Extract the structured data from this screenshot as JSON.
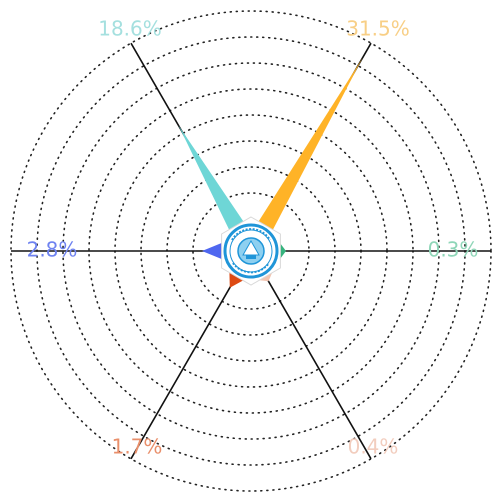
{
  "chart_data": {
    "type": "radar",
    "title": "",
    "grid": true,
    "grid_style": "dotted",
    "rmax": 31.5,
    "grid_rings": 8,
    "series": [
      {
        "values": [
          31.5,
          0.3,
          0.4,
          1.7,
          2.8,
          18.6
        ],
        "labels": [
          "31.5%",
          "0.3%",
          "0.4%",
          "1.7%",
          "2.8%",
          "18.6%"
        ],
        "colors": [
          "#FFB327",
          "#36B37E",
          "#F2C4B0",
          "#DD4A13",
          "#4F67F0",
          "#6ED6D6"
        ],
        "label_colors": [
          "#F8CF86",
          "#8FD6B8",
          "#F2CDBE",
          "#E98F6B",
          "#6E82F0",
          "#A5E0DF"
        ]
      }
    ],
    "center_emblem": "circular-seal-logo"
  }
}
